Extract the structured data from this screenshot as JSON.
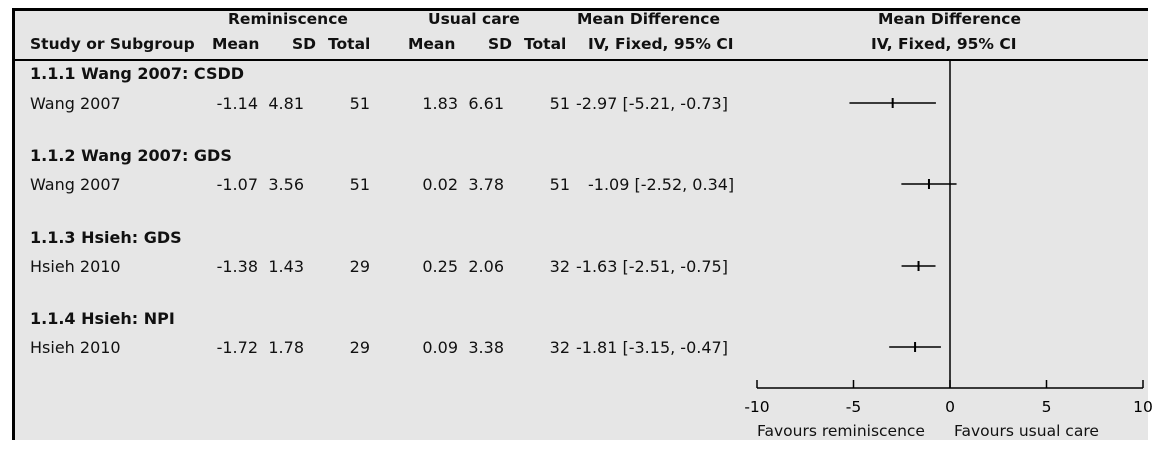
{
  "headers": {
    "group1": "Reminiscence",
    "group2": "Usual care",
    "effect_col_top": "Mean Difference",
    "effect_col_bottom": "IV, Fixed, 95% CI",
    "plot_col_top": "Mean Difference",
    "plot_col_bottom": "IV, Fixed, 95% CI",
    "study": "Study or Subgroup",
    "mean1": "Mean",
    "sd1": "SD",
    "total1": "Total",
    "mean2": "Mean",
    "sd2": "SD",
    "total2": "Total"
  },
  "subgroups": [
    {
      "label": "1.1.1 Wang 2007: CSDD",
      "study": {
        "name": "Wang 2007",
        "mean1": "-1.14",
        "sd1": "4.81",
        "n1": "51",
        "mean2": "1.83",
        "sd2": "6.61",
        "n2": "51",
        "ci_text": "-2.97 [-5.21, -0.73]"
      }
    },
    {
      "label": "1.1.2 Wang 2007: GDS",
      "study": {
        "name": "Wang 2007",
        "mean1": "-1.07",
        "sd1": "3.56",
        "n1": "51",
        "mean2": "0.02",
        "sd2": "3.78",
        "n2": "51",
        "ci_text": "-1.09 [-2.52, 0.34]"
      }
    },
    {
      "label": "1.1.3 Hsieh: GDS",
      "study": {
        "name": "Hsieh 2010",
        "mean1": "-1.38",
        "sd1": "1.43",
        "n1": "29",
        "mean2": "0.25",
        "sd2": "2.06",
        "n2": "32",
        "ci_text": "-1.63 [-2.51, -0.75]"
      }
    },
    {
      "label": "1.1.4 Hsieh: NPI",
      "study": {
        "name": "Hsieh 2010",
        "mean1": "-1.72",
        "sd1": "1.78",
        "n1": "29",
        "mean2": "0.09",
        "sd2": "3.38",
        "n2": "32",
        "ci_text": "-1.81 [-3.15, -0.47]"
      }
    }
  ],
  "favours_left": "Favours reminiscence",
  "favours_right": "Favours usual care",
  "chart_data": {
    "type": "forest",
    "xlim": [
      -10,
      10
    ],
    "x_ticks": [
      -10,
      -5,
      0,
      5,
      10
    ],
    "x_tick_labels": [
      "-10",
      "-5",
      "0",
      "5",
      "10"
    ],
    "null_line": 0,
    "points": [
      {
        "study": "Wang 2007",
        "md": -2.97,
        "lo": -5.21,
        "hi": -0.73
      },
      {
        "study": "Wang 2007",
        "md": -1.09,
        "lo": -2.52,
        "hi": 0.34
      },
      {
        "study": "Hsieh 2010",
        "md": -1.63,
        "lo": -2.51,
        "hi": -0.75
      },
      {
        "study": "Hsieh 2010",
        "md": -1.81,
        "lo": -3.15,
        "hi": -0.47
      }
    ],
    "colors": {
      "line": "#000000",
      "background": "#e6e6e6"
    }
  }
}
